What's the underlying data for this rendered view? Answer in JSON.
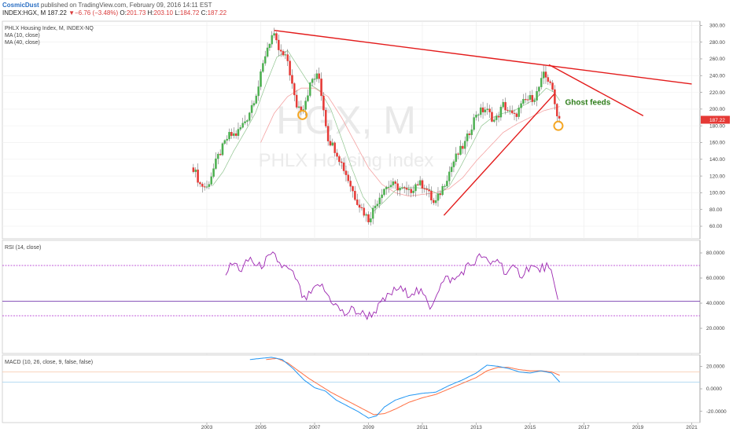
{
  "header": {
    "author": "CosmicDust",
    "published": " published on TradingView.com, February 09, 2016 14:11 EST",
    "symbol": "INDEX:HGX, M",
    "last": "187.22",
    "change_arrow": "▼",
    "change": "−6.76 (−3.48%)",
    "o_label": "O:",
    "o_value": "201.73",
    "h_label": "H:",
    "h_value": "203.10",
    "l_label": "L:",
    "l_value": "184.72",
    "c_label": "C:",
    "c_value": "187.22"
  },
  "colors": {
    "up": "#4caf50",
    "down": "#e53935",
    "trendline": "#e31b1b",
    "ma": "#f4a3a3",
    "rsi": "#9c27b0",
    "macd": "#2196f3",
    "signal": "#ff7043",
    "annotation": "#2e7d1a",
    "circle": "#f5a623",
    "price_tag": "#e53935"
  },
  "chart_data": [
    {
      "type": "candlestick",
      "legend": [
        "PHLX Housing Index, M, INDEX-NQ",
        "MA (10, close)",
        "MA (40, close)"
      ],
      "watermark": "HGX, M",
      "watermark_sub": "PHLX Housing Index",
      "x_ticks": [
        "2003",
        "2005",
        "2007",
        "2009",
        "2011",
        "2013",
        "2015",
        "2017",
        "2019",
        "2021"
      ],
      "y_ticks": [
        "60.00",
        "80.00",
        "100.00",
        "120.00",
        "140.00",
        "160.00",
        "180.00",
        "200.00",
        "220.00",
        "240.00",
        "260.00",
        "280.00",
        "300.00"
      ],
      "ylim": [
        45,
        305
      ],
      "last_price_label": "187.22",
      "annotation": "Ghost feeds",
      "close_anchors": [
        [
          2002.5,
          130
        ],
        [
          2002.75,
          110
        ],
        [
          2003.0,
          106
        ],
        [
          2003.4,
          142
        ],
        [
          2003.8,
          168
        ],
        [
          2004.1,
          170
        ],
        [
          2004.5,
          190
        ],
        [
          2004.9,
          225
        ],
        [
          2005.2,
          270
        ],
        [
          2005.45,
          290
        ],
        [
          2005.7,
          268
        ],
        [
          2006.0,
          258
        ],
        [
          2006.3,
          205
        ],
        [
          2006.55,
          200
        ],
        [
          2006.9,
          235
        ],
        [
          2007.15,
          240
        ],
        [
          2007.5,
          165
        ],
        [
          2007.8,
          150
        ],
        [
          2008.2,
          120
        ],
        [
          2008.5,
          95
        ],
        [
          2008.8,
          78
        ],
        [
          2009.0,
          68
        ],
        [
          2009.25,
          85
        ],
        [
          2009.55,
          105
        ],
        [
          2009.85,
          110
        ],
        [
          2010.2,
          105
        ],
        [
          2010.5,
          100
        ],
        [
          2010.8,
          112
        ],
        [
          2011.1,
          108
        ],
        [
          2011.45,
          85
        ],
        [
          2011.8,
          110
        ],
        [
          2012.2,
          140
        ],
        [
          2012.6,
          160
        ],
        [
          2013.0,
          195
        ],
        [
          2013.35,
          200
        ],
        [
          2013.7,
          185
        ],
        [
          2014.0,
          205
        ],
        [
          2014.4,
          190
        ],
        [
          2014.8,
          210
        ],
        [
          2015.2,
          215
        ],
        [
          2015.5,
          240
        ],
        [
          2015.75,
          233
        ],
        [
          2015.95,
          200
        ],
        [
          2016.1,
          187.22
        ]
      ],
      "ma10_anchors": [
        [
          2003.2,
          108
        ],
        [
          2003.6,
          125
        ],
        [
          2004.0,
          150
        ],
        [
          2004.4,
          172
        ],
        [
          2004.8,
          195
        ],
        [
          2005.2,
          230
        ],
        [
          2005.6,
          262
        ],
        [
          2006.0,
          270
        ],
        [
          2006.4,
          250
        ],
        [
          2006.8,
          230
        ],
        [
          2007.2,
          222
        ],
        [
          2007.6,
          200
        ],
        [
          2008.0,
          165
        ],
        [
          2008.4,
          128
        ],
        [
          2008.8,
          95
        ],
        [
          2009.2,
          78
        ],
        [
          2009.6,
          90
        ],
        [
          2010.0,
          103
        ],
        [
          2010.4,
          106
        ],
        [
          2010.8,
          106
        ],
        [
          2011.2,
          105
        ],
        [
          2011.6,
          98
        ],
        [
          2012.0,
          108
        ],
        [
          2012.4,
          130
        ],
        [
          2012.8,
          155
        ],
        [
          2013.2,
          180
        ],
        [
          2013.6,
          190
        ],
        [
          2014.0,
          195
        ],
        [
          2014.4,
          198
        ],
        [
          2014.8,
          205
        ],
        [
          2015.2,
          212
        ],
        [
          2015.6,
          225
        ],
        [
          2015.9,
          220
        ],
        [
          2016.1,
          210
        ]
      ],
      "ma40_anchors": [
        [
          2005.0,
          160
        ],
        [
          2005.5,
          195
        ],
        [
          2006.0,
          215
        ],
        [
          2006.5,
          225
        ],
        [
          2007.0,
          225
        ],
        [
          2007.5,
          215
        ],
        [
          2008.0,
          190
        ],
        [
          2008.5,
          160
        ],
        [
          2009.0,
          130
        ],
        [
          2009.5,
          110
        ],
        [
          2010.0,
          100
        ],
        [
          2010.5,
          96
        ],
        [
          2011.0,
          98
        ],
        [
          2011.5,
          100
        ],
        [
          2012.0,
          105
        ],
        [
          2012.5,
          118
        ],
        [
          2013.0,
          138
        ],
        [
          2013.5,
          155
        ],
        [
          2014.0,
          172
        ],
        [
          2014.5,
          182
        ],
        [
          2015.0,
          190
        ],
        [
          2015.5,
          198
        ],
        [
          2016.1,
          203
        ]
      ],
      "trendlines": [
        {
          "from": [
            2005.5,
            294
          ],
          "to": [
            2021.0,
            230
          ]
        },
        {
          "from": [
            2015.7,
            253
          ],
          "to": [
            2019.2,
            192
          ]
        },
        {
          "from": [
            2011.8,
            73
          ],
          "to": [
            2015.9,
            218
          ]
        }
      ],
      "circles": [
        [
          2006.55,
          193
        ],
        [
          2016.05,
          180
        ]
      ]
    },
    {
      "type": "line",
      "legend": "RSI (14, close)",
      "y_ticks": [
        "20.0000",
        "40.0000",
        "60.0000",
        "80.0000"
      ],
      "ylim": [
        0,
        90
      ],
      "bands": [
        70,
        41.5,
        30
      ],
      "rsi_anchors": [
        [
          2003.7,
          65
        ],
        [
          2004.0,
          72
        ],
        [
          2004.3,
          66
        ],
        [
          2004.6,
          76
        ],
        [
          2004.9,
          68
        ],
        [
          2005.2,
          74
        ],
        [
          2005.5,
          78
        ],
        [
          2005.75,
          70
        ],
        [
          2006.0,
          67
        ],
        [
          2006.3,
          60
        ],
        [
          2006.6,
          42
        ],
        [
          2006.9,
          48
        ],
        [
          2007.2,
          55
        ],
        [
          2007.5,
          46
        ],
        [
          2007.8,
          38
        ],
        [
          2008.1,
          31
        ],
        [
          2008.4,
          35
        ],
        [
          2008.7,
          32
        ],
        [
          2009.0,
          30
        ],
        [
          2009.2,
          33
        ],
        [
          2009.5,
          40
        ],
        [
          2009.8,
          47
        ],
        [
          2010.1,
          52
        ],
        [
          2010.4,
          48
        ],
        [
          2010.8,
          50
        ],
        [
          2011.0,
          47
        ],
        [
          2011.3,
          37
        ],
        [
          2011.6,
          52
        ],
        [
          2011.9,
          60
        ],
        [
          2012.2,
          58
        ],
        [
          2012.6,
          68
        ],
        [
          2012.9,
          72
        ],
        [
          2013.2,
          78
        ],
        [
          2013.5,
          70
        ],
        [
          2013.8,
          76
        ],
        [
          2014.1,
          64
        ],
        [
          2014.4,
          67
        ],
        [
          2014.7,
          63
        ],
        [
          2015.0,
          70
        ],
        [
          2015.3,
          66
        ],
        [
          2015.6,
          70
        ],
        [
          2015.8,
          62
        ],
        [
          2016.0,
          44
        ],
        [
          2016.1,
          42
        ]
      ]
    },
    {
      "type": "line",
      "legend": "MACD (10, 26, close, 9, false, false)",
      "y_ticks": [
        "-20.0000",
        "0.0000",
        "20.0000"
      ],
      "ylim": [
        -30,
        30
      ],
      "macd_anchors": [
        [
          2004.6,
          26
        ],
        [
          2005.0,
          27
        ],
        [
          2005.4,
          28
        ],
        [
          2005.8,
          26
        ],
        [
          2006.2,
          18
        ],
        [
          2006.6,
          8
        ],
        [
          2007.0,
          1
        ],
        [
          2007.4,
          -2
        ],
        [
          2007.8,
          -10
        ],
        [
          2008.2,
          -15
        ],
        [
          2008.6,
          -20
        ],
        [
          2009.0,
          -26
        ],
        [
          2009.3,
          -24
        ],
        [
          2009.6,
          -16
        ],
        [
          2010.0,
          -10
        ],
        [
          2010.5,
          -6
        ],
        [
          2011.0,
          -4
        ],
        [
          2011.5,
          -3
        ],
        [
          2012.0,
          3
        ],
        [
          2012.5,
          8
        ],
        [
          2013.0,
          14
        ],
        [
          2013.4,
          21
        ],
        [
          2013.8,
          20
        ],
        [
          2014.2,
          18
        ],
        [
          2014.6,
          15
        ],
        [
          2015.0,
          14
        ],
        [
          2015.4,
          16
        ],
        [
          2015.8,
          14
        ],
        [
          2016.1,
          6
        ]
      ],
      "signal_anchors": [
        [
          2005.2,
          26
        ],
        [
          2005.6,
          27
        ],
        [
          2006.0,
          23
        ],
        [
          2006.4,
          16
        ],
        [
          2006.8,
          9
        ],
        [
          2007.2,
          3
        ],
        [
          2007.6,
          -3
        ],
        [
          2008.0,
          -8
        ],
        [
          2008.4,
          -13
        ],
        [
          2008.8,
          -18
        ],
        [
          2009.2,
          -23
        ],
        [
          2009.6,
          -22
        ],
        [
          2010.0,
          -18
        ],
        [
          2010.5,
          -12
        ],
        [
          2011.0,
          -8
        ],
        [
          2011.5,
          -5
        ],
        [
          2012.0,
          0
        ],
        [
          2012.5,
          5
        ],
        [
          2013.0,
          10
        ],
        [
          2013.4,
          16
        ],
        [
          2013.8,
          19
        ],
        [
          2014.2,
          19
        ],
        [
          2014.6,
          17
        ],
        [
          2015.0,
          16
        ],
        [
          2015.4,
          16
        ],
        [
          2015.8,
          15
        ],
        [
          2016.1,
          12
        ]
      ],
      "ref_levels": [
        15,
        6
      ]
    }
  ]
}
